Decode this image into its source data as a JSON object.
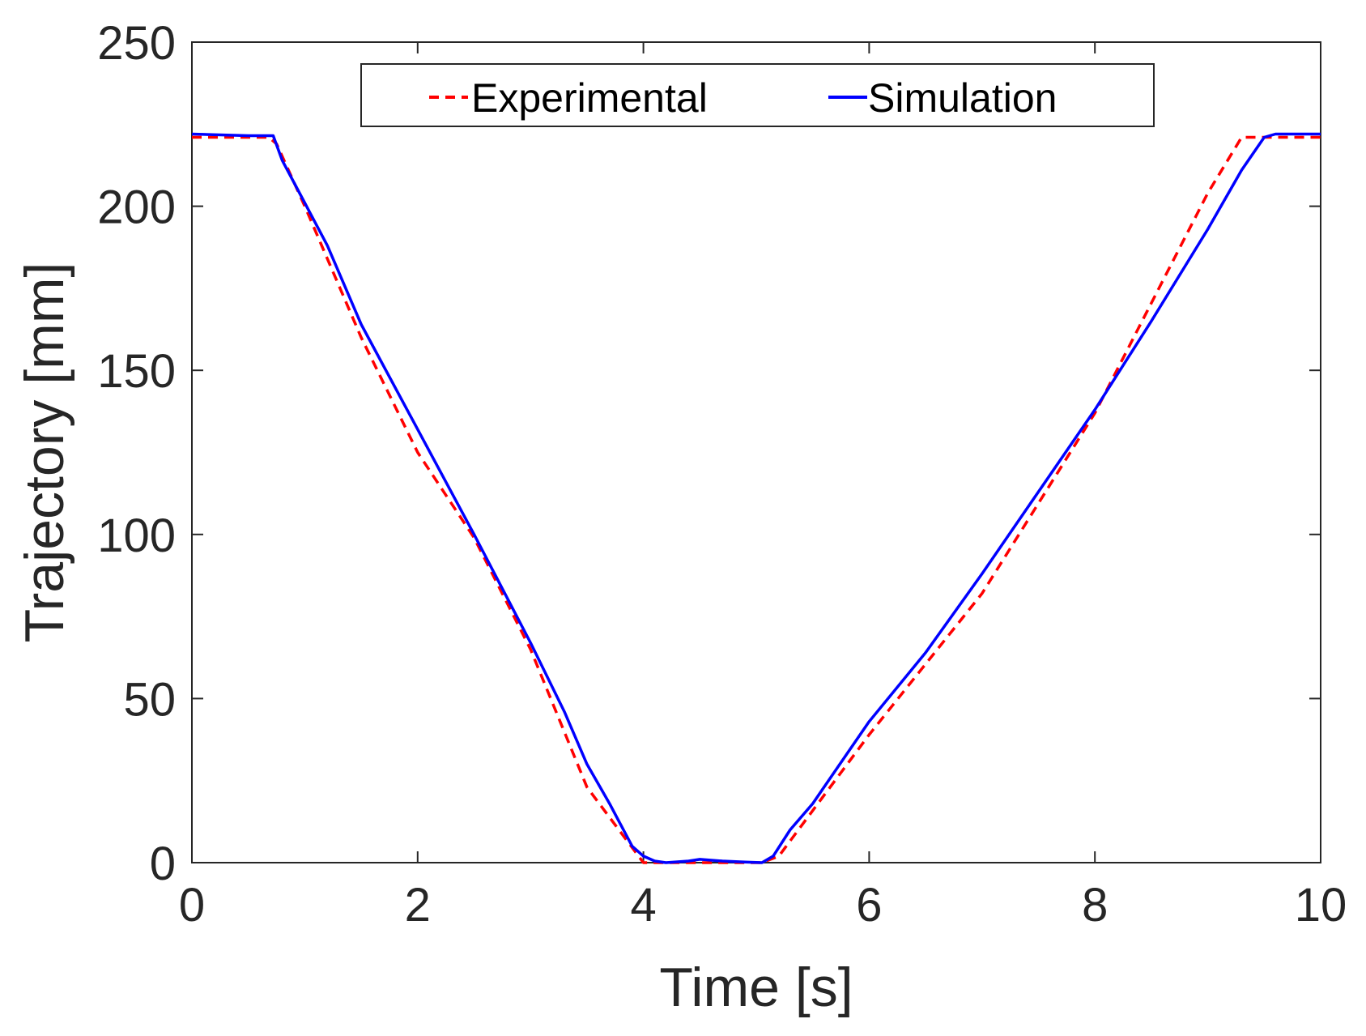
{
  "chart_data": {
    "type": "line",
    "title": "",
    "xlabel": "Time [s]",
    "ylabel": "Trajectory [mm]",
    "xlim": [
      0,
      10
    ],
    "ylim": [
      0,
      250
    ],
    "xticks": [
      0,
      2,
      4,
      6,
      8,
      10
    ],
    "yticks": [
      0,
      50,
      100,
      150,
      200,
      250
    ],
    "grid": false,
    "legend_position": "top-center",
    "series": [
      {
        "name": "Experimental",
        "style": "dashed",
        "color": "#ff0000",
        "x": [
          0,
          0.68,
          0.75,
          1.0,
          1.5,
          2.0,
          2.5,
          3.0,
          3.5,
          4.0,
          4.1,
          5.0,
          5.05,
          5.2,
          6.0,
          7.0,
          8.0,
          9.0,
          9.3,
          9.5,
          10.0
        ],
        "y": [
          221,
          221,
          219,
          200,
          160,
          125,
          99,
          65,
          23,
          0,
          0,
          0,
          0,
          2,
          39,
          82,
          137,
          204,
          221,
          221,
          221
        ]
      },
      {
        "name": "Simulation",
        "style": "solid",
        "color": "#0000ff",
        "x": [
          0,
          0.5,
          0.6,
          0.72,
          0.8,
          1.0,
          1.2,
          1.5,
          2.0,
          2.5,
          3.0,
          3.3,
          3.5,
          3.7,
          3.9,
          4.0,
          4.1,
          4.2,
          4.4,
          4.5,
          4.7,
          4.9,
          5.05,
          5.15,
          5.3,
          5.5,
          6.0,
          6.5,
          7.0,
          7.5,
          8.0,
          8.5,
          9.0,
          9.3,
          9.5,
          9.6,
          9.7,
          10.0
        ],
        "y": [
          222,
          221.5,
          221.5,
          221.5,
          214,
          201,
          188,
          164,
          132,
          100,
          67,
          46,
          30,
          18,
          5,
          2,
          0.5,
          0,
          0.5,
          1,
          0.5,
          0.2,
          0,
          2,
          10,
          18,
          43,
          64,
          88,
          113,
          138,
          165,
          193,
          211,
          221,
          222,
          222,
          222
        ]
      }
    ]
  }
}
